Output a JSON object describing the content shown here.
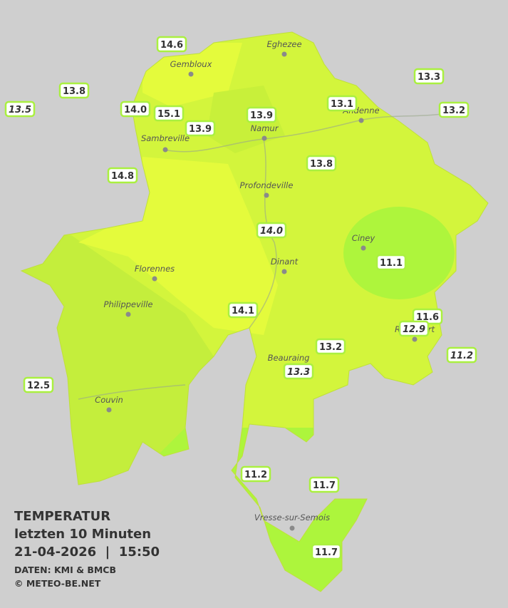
{
  "title": {
    "heading": "TEMPERATUR",
    "period": "letzten 10 Minuten",
    "datetime": "21-04-2026  |  15:50",
    "source": "DATEN: KMI & BMCB",
    "copyright": "© METEO-BE.NET"
  },
  "cities": [
    "Eghezee",
    "Gembloux",
    "Andenne",
    "Namur",
    "Sambreville",
    "Profondeville",
    "Ciney",
    "Dinant",
    "Florennes",
    "Philippeville",
    "Rochefort",
    "Beauraing",
    "Couvin",
    "Vresse-sur-Semois"
  ],
  "stations": [
    "14.6",
    "13.8",
    "13.5",
    "14.0",
    "15.1",
    "13.9",
    "13.9",
    "13.1",
    "13.3",
    "13.2",
    "13.8",
    "14.8",
    "14.0",
    "11.1",
    "14.1",
    "11.6",
    "12.9",
    "11.2",
    "13.2",
    "13.3",
    "12.5",
    "11.2",
    "11.7",
    "11.7"
  ]
}
